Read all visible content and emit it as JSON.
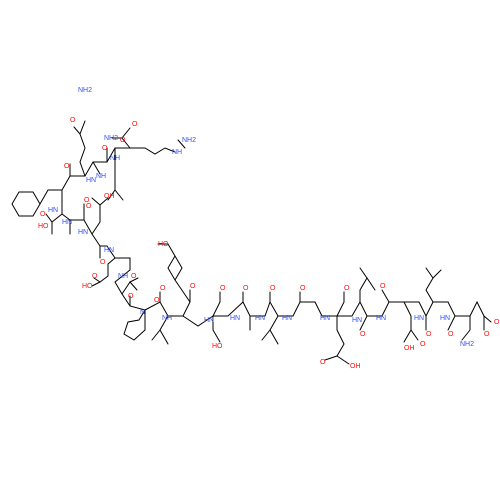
{
  "colors": {
    "bond": "#000000",
    "O": "#ff0d0d",
    "N": "#3050f8",
    "background": "#ffffff"
  },
  "labels": {
    "gln_amide_nh2": "NH2",
    "gln_amide_o": "O",
    "phe_c_o": "O",
    "gln_c_o": "O",
    "leu_c_o": "O",
    "term_amide_o": "O",
    "term_amide_nh2": "NH2",
    "arg_nh": "NH",
    "arg_nh2": "NH2",
    "n_phe_gln": "HN",
    "n_gln_leu": "NH",
    "n_leu_arg": "NH",
    "n_asp1": "HN",
    "asp1_side_o": "O",
    "asp1_side_oh": "HO",
    "asp1_c_o": "O",
    "n_asp2": "HN",
    "asp2_side_o": "O",
    "asp2_side_oh": "OH",
    "asp2_c_o": "O",
    "n_asp3": "HN",
    "asp3_side_o": "O",
    "asp3_side_oh": "HO",
    "asp3_c_o": "O",
    "n_ala1": "HN",
    "ala1_c_o": "O",
    "n_ala1_pro": "NH",
    "pro_c_o": "O",
    "pro_n": "N",
    "ile_c_o": "O",
    "n_ile_tyr": "NH",
    "tyr_oh": "HO",
    "tyr_c_o": "O",
    "n_tyr_ser": "HN",
    "ser_c_o": "O",
    "ser_oh": "HO",
    "n_ser_ala": "HN",
    "ala2_c_o": "O",
    "n_ala2_leu": "HN",
    "leu2_c_o": "O",
    "n_leu2_ala": "HN",
    "ala3_c_o": "O",
    "n_ala3_glu": "HN",
    "glu_c_o": "O",
    "glu_side_o": "O",
    "glu_side_oh": "OH",
    "n_glu_leu": "HN",
    "leu3_c_o": "O",
    "n_leu3_asp": "HN",
    "asp4_c_o": "O",
    "asp4_side_oh": "OH",
    "asp4_side_o": "O",
    "n_asp4_leu": "HN",
    "leu4_c_o": "O",
    "n_leu4_asp": "HN",
    "asp5_c_o": "O",
    "asp5_side_o": "O",
    "asp5_side_oh": "OH",
    "asp5_nh2": "NH2"
  }
}
